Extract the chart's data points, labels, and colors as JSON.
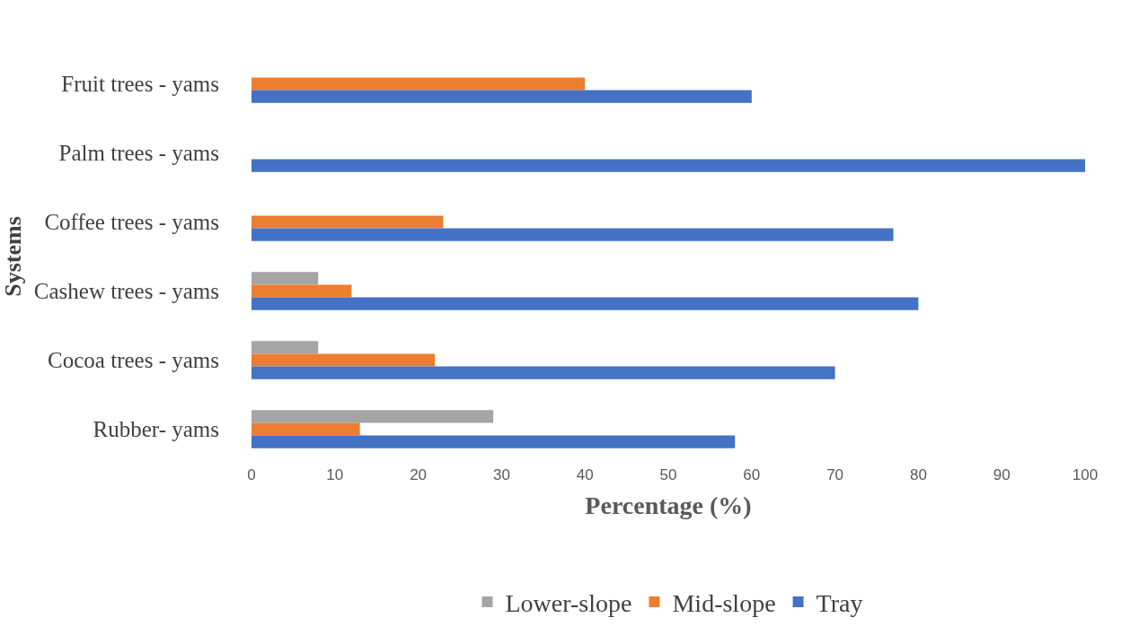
{
  "chart_data": {
    "type": "bar",
    "orientation": "horizontal",
    "xlabel": "Percentage (%)",
    "ylabel": "Systems",
    "categories": [
      "Fruit trees - yams",
      "Palm trees - yams",
      "Coffee trees - yams",
      "Cashew trees - yams",
      "Cocoa trees - yams",
      "Rubber- yams"
    ],
    "series": [
      {
        "name": "Lower-slope",
        "color": "#a5a5a5",
        "values": [
          0,
          0,
          0,
          8,
          8,
          29
        ]
      },
      {
        "name": "Mid-slope",
        "color": "#ed7d31",
        "values": [
          40,
          0,
          23,
          12,
          22,
          13
        ]
      },
      {
        "name": "Tray",
        "color": "#4472c4",
        "values": [
          60,
          100,
          77,
          80,
          70,
          58
        ]
      }
    ],
    "xlim": [
      0,
      100
    ],
    "xticks": [
      0,
      10,
      20,
      30,
      40,
      50,
      60,
      70,
      80,
      90,
      100
    ],
    "legend": "bottom"
  }
}
